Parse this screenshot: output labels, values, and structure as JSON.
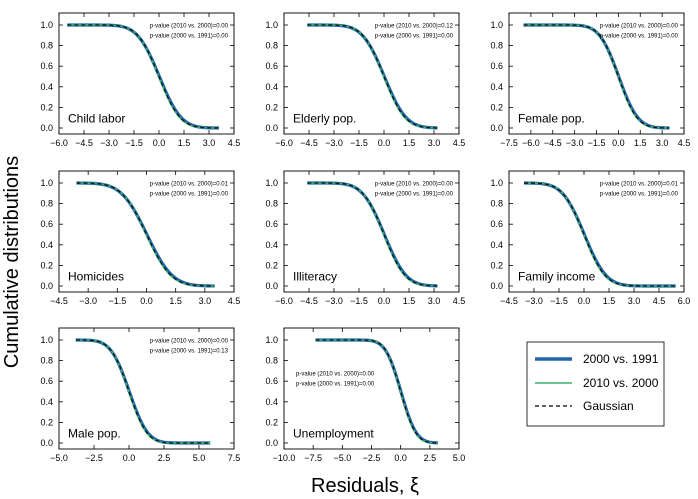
{
  "figure": {
    "ylabel": "Cumulative distributions",
    "xlabel": "Residuals, ξ"
  },
  "legend": {
    "items": [
      {
        "label": "2000 vs. 1991",
        "color": "#2166ac",
        "style": "solid-thick"
      },
      {
        "label": "2010 vs. 2000",
        "color": "#3cb371",
        "style": "solid-thin"
      },
      {
        "label": "Gaussian",
        "color": "#000000",
        "style": "dashed"
      }
    ]
  },
  "chart_data": [
    {
      "type": "line",
      "title": "Child labor",
      "xlim": [
        -6.0,
        4.5
      ],
      "ylim": [
        0.0,
        1.0
      ],
      "xticks": [
        "−6.0",
        "−4.5",
        "−3.0",
        "−1.5",
        "0.0",
        "1.5",
        "3.0",
        "4.5"
      ],
      "yticks": [
        "0.0",
        "0.2",
        "0.4",
        "0.6",
        "0.8",
        "1.0"
      ],
      "pvalues": [
        "p-value (2010 vs. 2000)=0.00",
        "p-value (2000 vs. 1991)=0.00"
      ],
      "x_range": [
        -5.5,
        3.6
      ],
      "mean": 0.0,
      "sd": 1.0
    },
    {
      "type": "line",
      "title": "Elderly pop.",
      "xlim": [
        -6.0,
        4.5
      ],
      "ylim": [
        0.0,
        1.0
      ],
      "xticks": [
        "−6.0",
        "−4.5",
        "−3.0",
        "−1.5",
        "0.0",
        "1.5",
        "3.0",
        "4.5"
      ],
      "yticks": [
        "0.0",
        "0.2",
        "0.4",
        "0.6",
        "0.8",
        "1.0"
      ],
      "pvalues": [
        "p-value (2010 vs. 2000)=0.12",
        "p-value (2000 vs. 1991)=0.00"
      ],
      "x_range": [
        -4.6,
        3.2
      ],
      "mean": 0.0,
      "sd": 1.0
    },
    {
      "type": "line",
      "title": "Female pop.",
      "xlim": [
        -7.5,
        4.5
      ],
      "ylim": [
        0.0,
        1.0
      ],
      "xticks": [
        "−7.5",
        "−6.0",
        "−4.5",
        "−3.0",
        "−1.5",
        "0.0",
        "1.5",
        "3.0",
        "4.5"
      ],
      "yticks": [
        "0.0",
        "0.2",
        "0.4",
        "0.6",
        "0.8",
        "1.0"
      ],
      "pvalues": [
        "p-value (2010 vs. 2000)=0.00",
        "p-value (2000 vs. 1991)=0.00"
      ],
      "x_range": [
        -6.5,
        3.5
      ],
      "mean": 0.0,
      "sd": 1.0
    },
    {
      "type": "line",
      "title": "Homicides",
      "xlim": [
        -4.5,
        4.5
      ],
      "ylim": [
        0.0,
        1.0
      ],
      "xticks": [
        "−4.5",
        "−3.0",
        "−1.5",
        "0.0",
        "1.5",
        "3.0",
        "4.5"
      ],
      "yticks": [
        "0.0",
        "0.2",
        "0.4",
        "0.6",
        "0.8",
        "1.0"
      ],
      "pvalues": [
        "p-value (2010 vs. 2000)=0.01",
        "p-value (2000 vs. 1991)=0.00"
      ],
      "x_range": [
        -3.6,
        3.5
      ],
      "mean": 0.0,
      "sd": 1.0
    },
    {
      "type": "line",
      "title": "Illiteracy",
      "xlim": [
        -6.0,
        4.5
      ],
      "ylim": [
        0.0,
        1.0
      ],
      "xticks": [
        "−6.0",
        "−4.5",
        "−3.0",
        "−1.5",
        "0.0",
        "1.5",
        "3.0",
        "4.5"
      ],
      "yticks": [
        "0.0",
        "0.2",
        "0.4",
        "0.6",
        "0.8",
        "1.0"
      ],
      "pvalues": [
        "p-value (2010 vs. 2000)=0.00",
        "p-value (2000 vs. 1991)=0.00"
      ],
      "x_range": [
        -4.6,
        3.2
      ],
      "mean": 0.0,
      "sd": 1.0
    },
    {
      "type": "line",
      "title": "Family income",
      "xlim": [
        -4.5,
        6.0
      ],
      "ylim": [
        0.0,
        1.0
      ],
      "xticks": [
        "−4.5",
        "−3.0",
        "−1.5",
        "0.0",
        "1.5",
        "3.0",
        "4.5",
        "6.0"
      ],
      "yticks": [
        "0.0",
        "0.2",
        "0.4",
        "0.6",
        "0.8",
        "1.0"
      ],
      "pvalues": [
        "p-value (2010 vs. 2000)=0.01",
        "p-value (2000 vs. 1991)=0.00"
      ],
      "x_range": [
        -3.6,
        5.5
      ],
      "mean": 0.0,
      "sd": 1.0
    },
    {
      "type": "line",
      "title": "Male pop.",
      "xlim": [
        -5.0,
        7.5
      ],
      "ylim": [
        0.0,
        1.0
      ],
      "xticks": [
        "−5.0",
        "−2.5",
        "0.0",
        "2.5",
        "5.0",
        "7.5"
      ],
      "yticks": [
        "0.0",
        "0.2",
        "0.4",
        "0.6",
        "0.8",
        "1.0"
      ],
      "pvalues": [
        "p-value (2010 vs. 2000)=0.00",
        "p-value (2000 vs. 1991)=0.13"
      ],
      "x_range": [
        -3.8,
        5.8
      ],
      "mean": 0.0,
      "sd": 1.0
    },
    {
      "type": "line",
      "title": "Unemployment",
      "xlim": [
        -10.0,
        5.0
      ],
      "ylim": [
        0.0,
        1.0
      ],
      "xticks": [
        "−10.0",
        "−7.5",
        "−5.0",
        "−2.5",
        "0.0",
        "2.5",
        "5.0"
      ],
      "yticks": [
        "0.0",
        "0.2",
        "0.4",
        "0.6",
        "0.8",
        "1.0"
      ],
      "pvalues": [
        "p-value (2010 vs. 2000)=0.00",
        "p-value (2000 vs. 1991)=0.00"
      ],
      "x_range": [
        -7.3,
        3.2
      ],
      "mean": 0.0,
      "sd": 1.0
    }
  ]
}
